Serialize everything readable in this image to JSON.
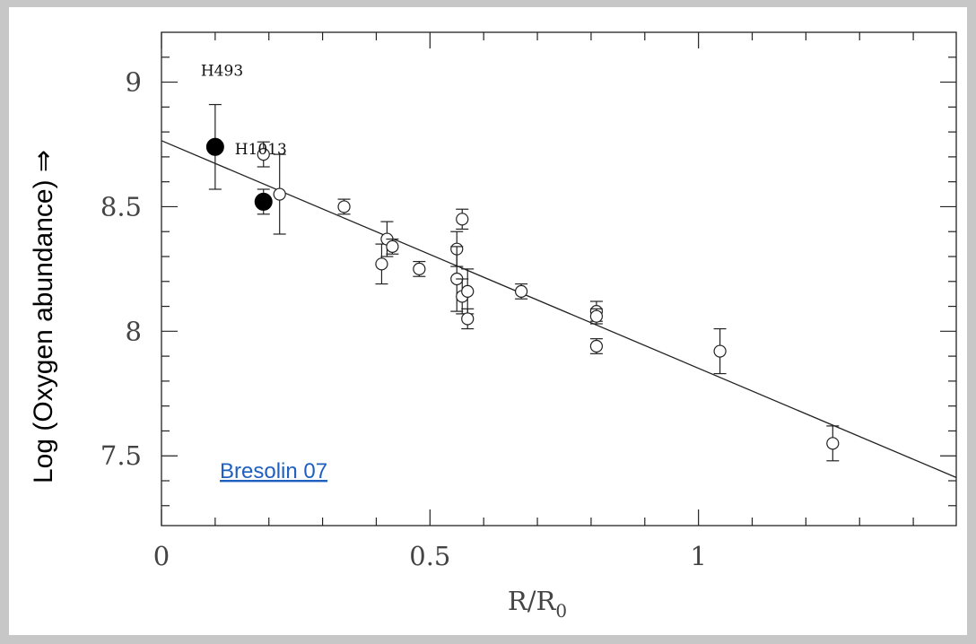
{
  "chart_data": {
    "type": "scatter",
    "xlabel": "R/R",
    "xlabel_sub": "0",
    "ylabel": "Log (Oxygen abundance) ⇒",
    "xlim": [
      0,
      1.48
    ],
    "ylim": [
      7.22,
      9.2
    ],
    "x_ticks": [
      0,
      0.5,
      1
    ],
    "y_ticks": [
      7.5,
      8,
      8.5,
      9
    ],
    "x_tick_labels": [
      "0",
      "0.5",
      "1"
    ],
    "y_tick_labels": [
      "7.5",
      "8",
      "8.5",
      "9"
    ],
    "grid": false,
    "series": [
      {
        "marker": "filled-circle",
        "points": [
          {
            "x": 0.1,
            "y": 8.74,
            "err": 0.17,
            "label": "H493"
          },
          {
            "x": 0.19,
            "y": 8.52,
            "err": 0.05,
            "label": "H1013"
          }
        ]
      },
      {
        "marker": "open-circle",
        "points": [
          {
            "x": 0.19,
            "y": 8.71,
            "err": 0.05
          },
          {
            "x": 0.22,
            "y": 8.55,
            "err": 0.16
          },
          {
            "x": 0.34,
            "y": 8.5,
            "err": 0.03
          },
          {
            "x": 0.41,
            "y": 8.27,
            "err": 0.08
          },
          {
            "x": 0.42,
            "y": 8.37,
            "err": 0.07
          },
          {
            "x": 0.43,
            "y": 8.34,
            "err": 0.03
          },
          {
            "x": 0.48,
            "y": 8.25,
            "err": 0.03
          },
          {
            "x": 0.55,
            "y": 8.33,
            "err": 0.07
          },
          {
            "x": 0.55,
            "y": 8.21,
            "err": 0.13
          },
          {
            "x": 0.56,
            "y": 8.45,
            "err": 0.04
          },
          {
            "x": 0.56,
            "y": 8.14,
            "err": 0.07
          },
          {
            "x": 0.57,
            "y": 8.16,
            "err": 0.09
          },
          {
            "x": 0.57,
            "y": 8.05,
            "err": 0.04
          },
          {
            "x": 0.67,
            "y": 8.16,
            "err": 0.03
          },
          {
            "x": 0.81,
            "y": 8.08,
            "err": 0.04
          },
          {
            "x": 0.81,
            "y": 8.06,
            "err": 0.03
          },
          {
            "x": 0.81,
            "y": 7.94,
            "err": 0.03
          },
          {
            "x": 1.04,
            "y": 7.92,
            "err": 0.09
          },
          {
            "x": 1.25,
            "y": 7.55,
            "err": 0.07
          }
        ]
      }
    ],
    "fit_line": {
      "intercept": 8.765,
      "slope": -0.9135
    },
    "annotation": "Bresolin 07"
  }
}
